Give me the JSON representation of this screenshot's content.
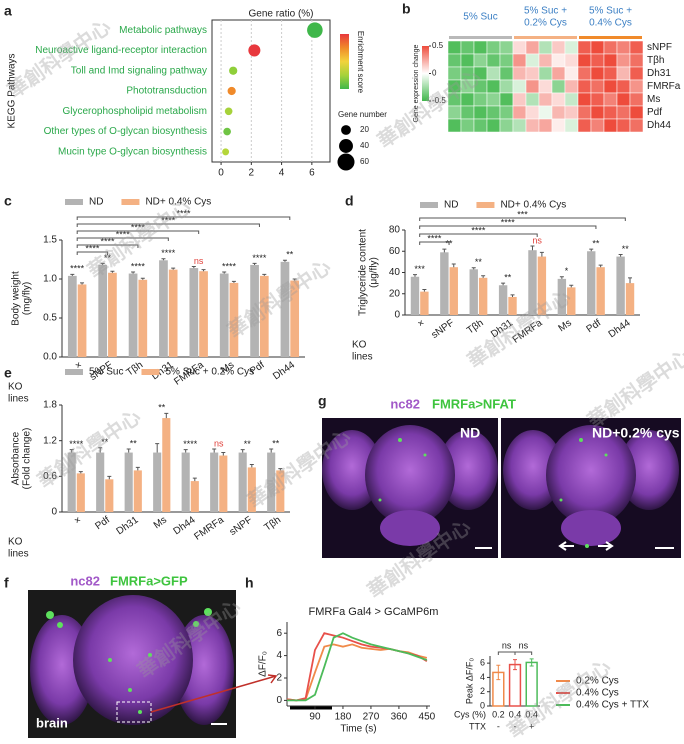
{
  "panel_labels": [
    "a",
    "b",
    "c",
    "d",
    "e",
    "g",
    "f",
    "h"
  ],
  "watermark": "華創科學中心",
  "images": {
    "g": {
      "stains": [
        "nc82",
        "FMRFa>NFAT"
      ],
      "left": "ND",
      "right": "ND+0.2% cys"
    },
    "f": {
      "stains": [
        "nc82",
        "FMRFa>GFP"
      ],
      "corner": "brain"
    }
  },
  "chart_data": [
    {
      "type": "bubble",
      "title": "Gene ratio (%)",
      "ylabel": "KEGG Pathways",
      "categories": [
        "Metabolic pathways",
        "Neuroactive ligand-receptor interaction",
        "Toll and Imd signaling pathway",
        "Phototransduction",
        "Glycerophospholipid metabolism",
        "Other types of O-glycan biosynthesis",
        "Mucin type O-glycan biosynthesis"
      ],
      "values": [
        6.2,
        2.2,
        0.8,
        0.7,
        0.5,
        0.4,
        0.3
      ],
      "sizes": [
        50,
        30,
        14,
        14,
        12,
        12,
        10
      ],
      "colors": [
        "#3fb74a",
        "#e8383d",
        "#8fcf3a",
        "#f08a2a",
        "#a6d23a",
        "#6fc444",
        "#b5d63a"
      ],
      "label_color": "#2aa84a",
      "xlim": [
        -0.6,
        7.2
      ],
      "xticks": [
        0,
        2,
        4,
        6
      ],
      "grid": true,
      "colorbar_title": "Enrichment score",
      "colorbar_colors": [
        "#e8383d",
        "#f08a2a",
        "#f2d33c",
        "#a6d23a",
        "#3fb74a"
      ],
      "size_legend_title": "Gene number",
      "size_legend": [
        20,
        40,
        60
      ]
    },
    {
      "type": "heatmap",
      "colorbar_title": "Gene expression change",
      "groups": [
        [
          "5% Suc"
        ],
        [
          "5% Suc +",
          "0.2% Cys"
        ],
        [
          "5% Suc +",
          "0.4% Cys"
        ]
      ],
      "group_colors": [
        "#b9b9b9",
        "#f4b183",
        "#f08a2a"
      ],
      "group_text_color": "#3b7fc4",
      "rows": [
        "sNPF",
        "Tβh",
        "Dh31",
        "FMRFa",
        "Ms",
        "Pdf",
        "Dh44"
      ],
      "values": [
        [
          -0.45,
          -0.4,
          -0.45,
          -0.35,
          -0.3,
          0.1,
          0.25,
          -0.2,
          0.15,
          -0.1,
          0.45,
          0.5,
          0.4,
          0.35,
          0.45
        ],
        [
          -0.4,
          -0.45,
          -0.3,
          -0.4,
          -0.35,
          0.3,
          -0.1,
          0.2,
          0.05,
          0.1,
          0.5,
          0.45,
          0.5,
          0.3,
          0.4
        ],
        [
          -0.35,
          -0.4,
          -0.45,
          -0.2,
          -0.4,
          0.2,
          0.15,
          -0.25,
          0.25,
          0.05,
          0.4,
          0.5,
          0.45,
          0.2,
          0.45
        ],
        [
          -0.45,
          -0.3,
          -0.4,
          -0.45,
          -0.25,
          -0.1,
          0.3,
          0.1,
          -0.3,
          0.2,
          0.45,
          0.4,
          0.5,
          0.45,
          0.3
        ],
        [
          -0.4,
          -0.45,
          -0.35,
          -0.3,
          -0.45,
          0.15,
          -0.2,
          0.2,
          0.1,
          -0.15,
          0.5,
          0.45,
          0.35,
          0.5,
          0.4
        ],
        [
          -0.3,
          -0.4,
          -0.45,
          -0.4,
          -0.35,
          0.25,
          0.1,
          -0.05,
          0.2,
          0.15,
          0.4,
          0.5,
          0.45,
          0.4,
          0.5
        ],
        [
          -0.45,
          -0.35,
          -0.4,
          -0.45,
          -0.3,
          -0.2,
          0.2,
          0.25,
          0.05,
          -0.1,
          0.45,
          0.35,
          0.5,
          0.45,
          0.4
        ]
      ],
      "clim": [
        -0.5,
        0.5
      ],
      "cticks": [
        0.5,
        0,
        -0.5
      ],
      "colors": [
        "#3fb74a",
        "#ffffff",
        "#ee4c3c"
      ]
    },
    {
      "type": "bar",
      "ylabel_lines": [
        "Body weight",
        "(mg/fly)"
      ],
      "xlabel_lines": [
        "KO",
        "lines"
      ],
      "categories": [
        "×",
        "sNPF",
        "Tβh",
        "Dh31",
        "FMRFa",
        "Ms",
        "Pdf",
        "Dh44"
      ],
      "series": [
        {
          "name": "ND",
          "color": "#b3b3b3",
          "values": [
            1.04,
            1.18,
            1.07,
            1.24,
            1.14,
            1.07,
            1.18,
            1.22
          ],
          "errors": [
            0.02,
            0.02,
            0.02,
            0.02,
            0.02,
            0.02,
            0.02,
            0.02
          ]
        },
        {
          "name": "ND+ 0.4% Cys",
          "color": "#f4b183",
          "values": [
            0.93,
            1.08,
            0.99,
            1.12,
            1.1,
            0.95,
            1.04,
            0.98
          ],
          "errors": [
            0.02,
            0.02,
            0.02,
            0.02,
            0.02,
            0.02,
            0.02,
            0.02
          ]
        }
      ],
      "ylim": [
        0,
        1.5
      ],
      "yticks": [
        {
          "value": 0,
          "label": "0.0"
        },
        0.5,
        {
          "value": 1,
          "label": "1.0"
        },
        1.5
      ],
      "pair_labels": [
        "****",
        "**",
        "****",
        "****",
        "ns",
        "****",
        "****",
        "**"
      ],
      "pair_label_colors": [
        "#222",
        "#222",
        "#222",
        "#222",
        "#e0403a",
        "#222",
        "#222",
        "#222"
      ],
      "brackets": [
        "****",
        "****",
        "****",
        "****",
        null,
        "****",
        "****"
      ]
    },
    {
      "type": "bar",
      "ylabel_lines": [
        "Triglyceride content",
        "(μg/fly)"
      ],
      "xlabel_lines": [
        "KO",
        "lines"
      ],
      "categories": [
        "×",
        "sNPF",
        "Tβh",
        "Dh31",
        "FMRFa",
        "Ms",
        "Pdf",
        "Dh44"
      ],
      "series": [
        {
          "name": "ND",
          "color": "#b3b3b3",
          "values": [
            36,
            59,
            43,
            28,
            61,
            34,
            60,
            55
          ],
          "errors": [
            2,
            3,
            1.5,
            2,
            4,
            2,
            2,
            2
          ]
        },
        {
          "name": "ND+ 0.4% Cys",
          "color": "#f4b183",
          "values": [
            22,
            45,
            35,
            17,
            55,
            26,
            45,
            30
          ],
          "errors": [
            2,
            3,
            2,
            2,
            4,
            2,
            2,
            5
          ]
        }
      ],
      "ylim": [
        0,
        80
      ],
      "yticks": [
        0,
        20,
        40,
        60,
        80
      ],
      "pair_labels": [
        "***",
        "**",
        "**",
        "**",
        "ns",
        "*",
        "**",
        "**"
      ],
      "pair_label_colors": [
        "#222",
        "#222",
        "#222",
        "#222",
        "#e0403a",
        "#222",
        "#222",
        "#222"
      ],
      "brackets": [
        "****",
        null,
        null,
        "****",
        null,
        "****",
        "***"
      ]
    },
    {
      "type": "bar",
      "ylabel_lines": [
        "Absorbance",
        "(Fold change)"
      ],
      "xlabel_lines": [
        "KO",
        "lines"
      ],
      "categories": [
        "×",
        "Pdf",
        "Dh31",
        "Ms",
        "Dh44",
        "FMRFa",
        "sNPF",
        "Tβh"
      ],
      "series": [
        {
          "name": "5% Suc",
          "color": "#b3b3b3",
          "values": [
            1,
            1,
            1,
            1,
            1,
            1,
            1,
            1
          ],
          "errors": [
            0.05,
            0.08,
            0.06,
            0.15,
            0.05,
            0.06,
            0.05,
            0.06
          ]
        },
        {
          "name": "5% Suc + 0.2% Cys",
          "color": "#f4b183",
          "values": [
            0.65,
            0.55,
            0.7,
            1.58,
            0.52,
            0.95,
            0.75,
            0.7
          ],
          "errors": [
            0.03,
            0.05,
            0.05,
            0.08,
            0.05,
            0.05,
            0.05,
            0.03
          ]
        }
      ],
      "ylim": [
        0,
        1.8
      ],
      "yticks": [
        0,
        0.6,
        1.2,
        1.8
      ],
      "pair_labels": [
        "****",
        "**",
        "**",
        "**",
        "****",
        "ns",
        "**",
        "**"
      ],
      "pair_label_colors": [
        "#222",
        "#222",
        "#222",
        "#222",
        "#222",
        "#e0403a",
        "#222",
        "#222"
      ]
    },
    {
      "type": "line",
      "title": "FMRFa Gal4 > GCaMP6m",
      "ylabel": "ΔF/F₀",
      "xlabel": "Time (s)",
      "x": [
        0,
        30,
        60,
        90,
        120,
        150,
        180,
        210,
        240,
        270,
        300,
        330,
        360,
        390,
        420,
        450
      ],
      "series": [
        {
          "name": "0.2% Cys",
          "color": "#f08a4a",
          "values": [
            0.1,
            0,
            0.1,
            2.5,
            4.8,
            5,
            4.8,
            5,
            4.7,
            4.6,
            4.5,
            4.6,
            4.4,
            4.3,
            4,
            3.8
          ]
        },
        {
          "name": "0.4% Cys",
          "color": "#e8504a",
          "values": [
            0.1,
            0,
            0.2,
            4.5,
            6,
            5.8,
            5.6,
            5.3,
            5,
            4.8,
            4.7,
            4.6,
            4.4,
            4.2,
            4,
            3.5
          ]
        },
        {
          "name": "0.4% Cys + TTX",
          "color": "#4cbb5a",
          "values": [
            0,
            0,
            0,
            0.5,
            3,
            5.6,
            6,
            5.6,
            5.3,
            5,
            4.8,
            4.6,
            4.4,
            4.2,
            3.9,
            3.6
          ]
        }
      ],
      "xlim": [
        0,
        460
      ],
      "xticks": [
        90,
        180,
        270,
        360,
        450
      ],
      "ylim": [
        -0.5,
        7
      ],
      "yticks": [
        0,
        2,
        4,
        6
      ]
    },
    {
      "type": "bar",
      "ylabel": "Peak ΔF/F₀",
      "values": [
        4.7,
        5.8,
        6.1
      ],
      "errors": [
        1,
        0.7,
        0.5
      ],
      "colors": [
        "#f08a4a",
        "#e8504a",
        "#4cbb5a"
      ],
      "ylim": [
        0,
        7
      ],
      "yticks": [
        0,
        2,
        4,
        6
      ],
      "sig_labels": [
        "ns",
        "ns"
      ],
      "table": [
        {
          "label": "Cys (%)",
          "cells": [
            0.2,
            0.4,
            0.4
          ]
        },
        {
          "label": "TTX",
          "cells": [
            "-",
            "-",
            "+"
          ]
        }
      ]
    }
  ]
}
